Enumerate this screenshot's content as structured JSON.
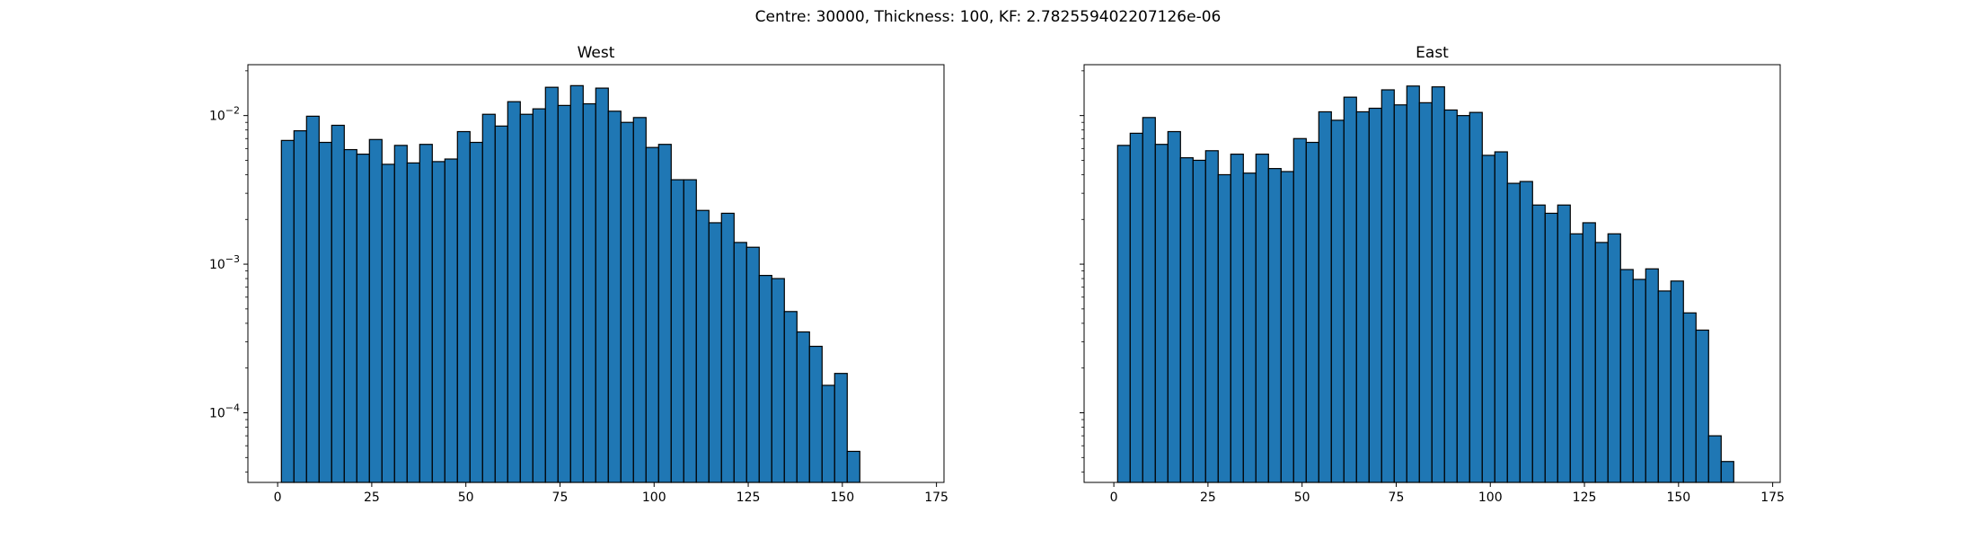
{
  "suptitle": "Centre: 30000, Thickness: 100, KF: 2.782559402207126e-06",
  "colors": {
    "bar_fill": "#1f77b4",
    "bar_edge": "#000000",
    "axes": "#000000"
  },
  "chart_data": [
    {
      "type": "bar",
      "title": "West",
      "xlabel": "",
      "ylabel": "",
      "yscale": "log",
      "grid": false,
      "xlim": [
        -7.9,
        177.0
      ],
      "ylim": [
        3.4e-05,
        0.022
      ],
      "xticks": [
        "0",
        "25",
        "50",
        "75",
        "100",
        "125",
        "150",
        "175"
      ],
      "yticks": [
        "10^-4",
        "10^-3",
        "10^-2"
      ],
      "bin_start": 1.0,
      "bin_width": 3.34,
      "values": [
        0.0068,
        0.0079,
        0.0099,
        0.0066,
        0.0086,
        0.0059,
        0.0055,
        0.0069,
        0.0047,
        0.0063,
        0.0048,
        0.0064,
        0.0049,
        0.0051,
        0.0078,
        0.0066,
        0.0102,
        0.0085,
        0.0124,
        0.0102,
        0.0111,
        0.0155,
        0.0117,
        0.0159,
        0.012,
        0.0153,
        0.0107,
        0.009,
        0.0097,
        0.0061,
        0.0064,
        0.0037,
        0.0037,
        0.0023,
        0.0019,
        0.0022,
        0.0014,
        0.0013,
        0.00084,
        0.0008,
        0.00048,
        0.00035,
        0.00028,
        0.000153,
        0.000184,
        5.5e-05
      ]
    },
    {
      "type": "bar",
      "title": "East",
      "xlabel": "",
      "ylabel": "",
      "yscale": "log",
      "grid": false,
      "xlim": [
        -7.9,
        177.0
      ],
      "ylim": [
        3.4e-05,
        0.022
      ],
      "xticks": [
        "0",
        "25",
        "50",
        "75",
        "100",
        "125",
        "150",
        "175"
      ],
      "yticks": [],
      "bin_start": 1.0,
      "bin_width": 3.34,
      "values": [
        0.0063,
        0.0076,
        0.0097,
        0.0064,
        0.0078,
        0.0052,
        0.005,
        0.0058,
        0.004,
        0.0055,
        0.0041,
        0.0055,
        0.0044,
        0.0042,
        0.007,
        0.0066,
        0.0106,
        0.0093,
        0.0133,
        0.0106,
        0.0112,
        0.0149,
        0.0118,
        0.0158,
        0.0122,
        0.0156,
        0.0109,
        0.01,
        0.0105,
        0.0054,
        0.0057,
        0.0035,
        0.0036,
        0.0025,
        0.0022,
        0.0025,
        0.0016,
        0.0019,
        0.0014,
        0.0016,
        0.00092,
        0.00079,
        0.00093,
        0.00066,
        0.00077,
        0.00047,
        0.00036,
        7e-05,
        4.7e-05
      ]
    }
  ]
}
